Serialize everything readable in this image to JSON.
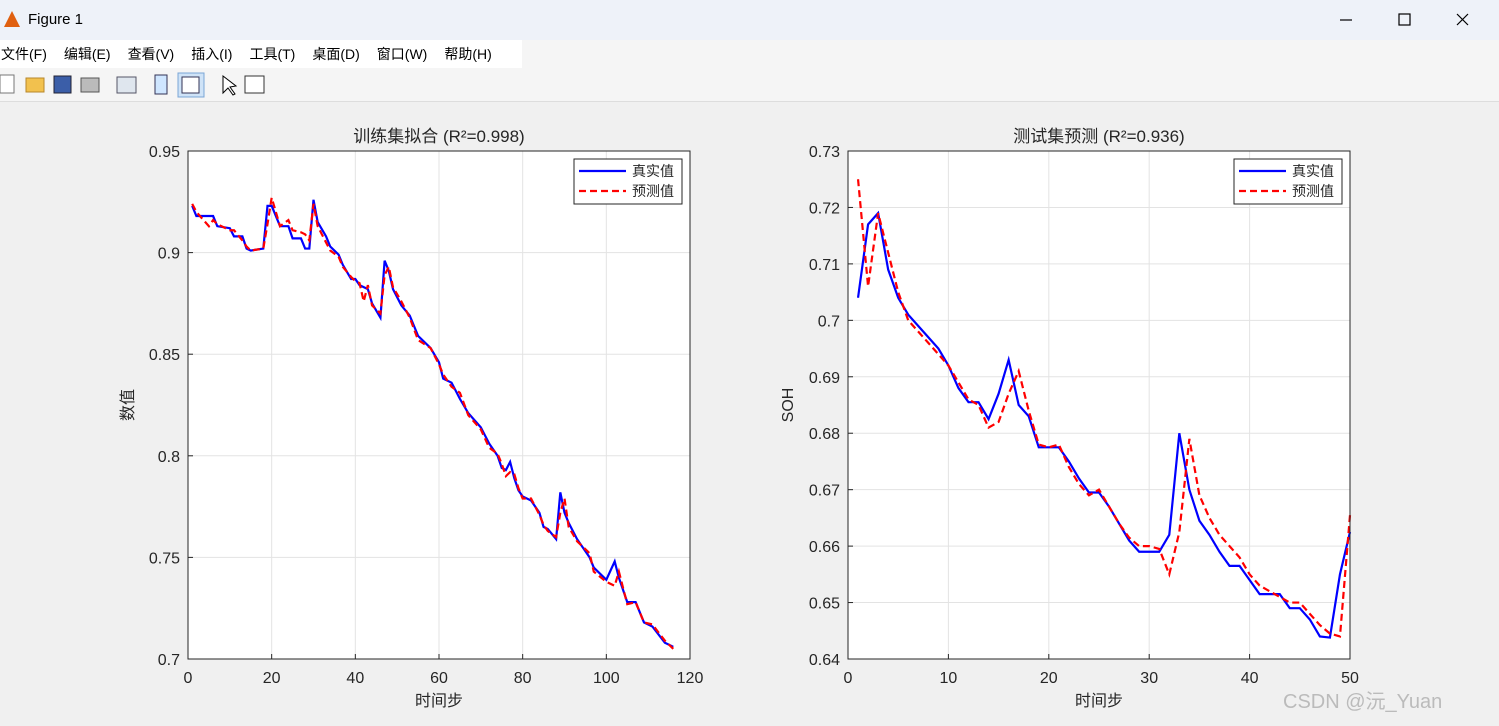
{
  "window": {
    "title": "Figure 1",
    "menu": [
      "文件(F)",
      "编辑(E)",
      "查看(V)",
      "插入(I)",
      "工具(T)",
      "桌面(D)",
      "窗口(W)",
      "帮助(H)"
    ]
  },
  "watermark": "CSDN @沅_Yuan",
  "chart_data": [
    {
      "type": "line",
      "title": "训练集拟合 (R²=0.998)",
      "xlabel": "时间步",
      "ylabel": "数值",
      "x": [
        1,
        2,
        5,
        6,
        7,
        10,
        11,
        13,
        14,
        15,
        18,
        19,
        20,
        22,
        24,
        25,
        27,
        28,
        29,
        30,
        31,
        33,
        34,
        36,
        37,
        39,
        40,
        41,
        42,
        43,
        44,
        46,
        47,
        48,
        49,
        51,
        53,
        55,
        58,
        60,
        61,
        63,
        65,
        67,
        70,
        72,
        74,
        75,
        76,
        77,
        78,
        79,
        80,
        82,
        84,
        85,
        86,
        88,
        89,
        90,
        91,
        93,
        96,
        97,
        100,
        102,
        103,
        105,
        107,
        109,
        111,
        114,
        116
      ],
      "series": [
        {
          "name": "真实值",
          "color": "#0000ff",
          "linestyle": "solid",
          "values": [
            0.923,
            0.918,
            0.918,
            0.918,
            0.913,
            0.912,
            0.908,
            0.908,
            0.902,
            0.901,
            0.902,
            0.923,
            0.923,
            0.913,
            0.913,
            0.907,
            0.907,
            0.902,
            0.902,
            0.926,
            0.915,
            0.908,
            0.903,
            0.899,
            0.894,
            0.887,
            0.887,
            0.884,
            0.883,
            0.882,
            0.875,
            0.868,
            0.896,
            0.891,
            0.882,
            0.874,
            0.869,
            0.859,
            0.853,
            0.846,
            0.838,
            0.836,
            0.828,
            0.821,
            0.814,
            0.806,
            0.8,
            0.794,
            0.793,
            0.797,
            0.789,
            0.783,
            0.78,
            0.778,
            0.772,
            0.765,
            0.764,
            0.759,
            0.782,
            0.772,
            0.767,
            0.759,
            0.75,
            0.745,
            0.739,
            0.748,
            0.74,
            0.728,
            0.728,
            0.718,
            0.716,
            0.708,
            0.706
          ]
        },
        {
          "name": "预测值",
          "color": "#ff0000",
          "linestyle": "dashed",
          "values": [
            0.924,
            0.92,
            0.913,
            0.916,
            0.914,
            0.911,
            0.911,
            0.906,
            0.903,
            0.901,
            0.902,
            0.914,
            0.927,
            0.913,
            0.916,
            0.911,
            0.91,
            0.909,
            0.906,
            0.924,
            0.913,
            0.905,
            0.901,
            0.898,
            0.893,
            0.888,
            0.886,
            0.885,
            0.876,
            0.884,
            0.874,
            0.87,
            0.889,
            0.893,
            0.883,
            0.876,
            0.868,
            0.857,
            0.853,
            0.845,
            0.84,
            0.834,
            0.831,
            0.82,
            0.813,
            0.804,
            0.801,
            0.796,
            0.79,
            0.792,
            0.791,
            0.784,
            0.779,
            0.779,
            0.771,
            0.766,
            0.763,
            0.76,
            0.772,
            0.779,
            0.765,
            0.758,
            0.752,
            0.743,
            0.738,
            0.736,
            0.743,
            0.727,
            0.728,
            0.718,
            0.717,
            0.709,
            0.705
          ]
        }
      ],
      "xlim": [
        0,
        120
      ],
      "ylim": [
        0.7,
        0.95
      ],
      "xticks": [
        0,
        20,
        40,
        60,
        80,
        100,
        120
      ],
      "yticks": [
        0.7,
        0.75,
        0.8,
        0.85,
        0.9,
        0.95
      ],
      "grid": true,
      "legend": "upper-right"
    },
    {
      "type": "line",
      "title": "测试集预测 (R²=0.936)",
      "xlabel": "时间步",
      "ylabel": "SOH",
      "x": [
        1,
        2,
        3,
        4,
        5,
        6,
        7,
        8,
        9,
        10,
        11,
        12,
        13,
        14,
        15,
        16,
        17,
        18,
        19,
        20,
        21,
        22,
        23,
        24,
        25,
        26,
        27,
        28,
        29,
        30,
        31,
        32,
        33,
        34,
        35,
        36,
        37,
        38,
        39,
        40,
        41,
        42,
        43,
        44,
        45,
        46,
        47,
        48,
        49,
        50
      ],
      "series": [
        {
          "name": "真实值",
          "color": "#0000ff",
          "linestyle": "solid",
          "values": [
            0.704,
            0.717,
            0.719,
            0.709,
            0.704,
            0.701,
            0.699,
            0.697,
            0.695,
            0.692,
            0.688,
            0.6855,
            0.6855,
            0.6825,
            0.687,
            0.693,
            0.685,
            0.683,
            0.6775,
            0.6775,
            0.6775,
            0.675,
            0.672,
            0.6695,
            0.6695,
            0.667,
            0.664,
            0.661,
            0.659,
            0.659,
            0.659,
            0.662,
            0.68,
            0.67,
            0.6645,
            0.662,
            0.659,
            0.6565,
            0.6565,
            0.654,
            0.6515,
            0.6515,
            0.6515,
            0.649,
            0.649,
            0.647,
            0.644,
            0.6438,
            0.655,
            0.6625
          ]
        },
        {
          "name": "预测值",
          "color": "#ff0000",
          "linestyle": "dashed",
          "values": [
            0.725,
            0.706,
            0.719,
            0.712,
            0.705,
            0.7,
            0.698,
            0.696,
            0.694,
            0.692,
            0.689,
            0.686,
            0.685,
            0.681,
            0.682,
            0.687,
            0.691,
            0.684,
            0.678,
            0.6775,
            0.678,
            0.674,
            0.671,
            0.669,
            0.67,
            0.667,
            0.664,
            0.6615,
            0.66,
            0.66,
            0.6595,
            0.655,
            0.6625,
            0.679,
            0.669,
            0.665,
            0.662,
            0.66,
            0.658,
            0.655,
            0.653,
            0.652,
            0.651,
            0.65,
            0.65,
            0.648,
            0.646,
            0.6445,
            0.644,
            0.6655
          ]
        }
      ],
      "xlim": [
        0,
        50
      ],
      "ylim": [
        0.64,
        0.73
      ],
      "xticks": [
        0,
        10,
        20,
        30,
        40,
        50
      ],
      "yticks": [
        0.64,
        0.65,
        0.66,
        0.67,
        0.68,
        0.69,
        0.7,
        0.71,
        0.72,
        0.73
      ],
      "grid": true,
      "legend": "upper-right"
    }
  ]
}
